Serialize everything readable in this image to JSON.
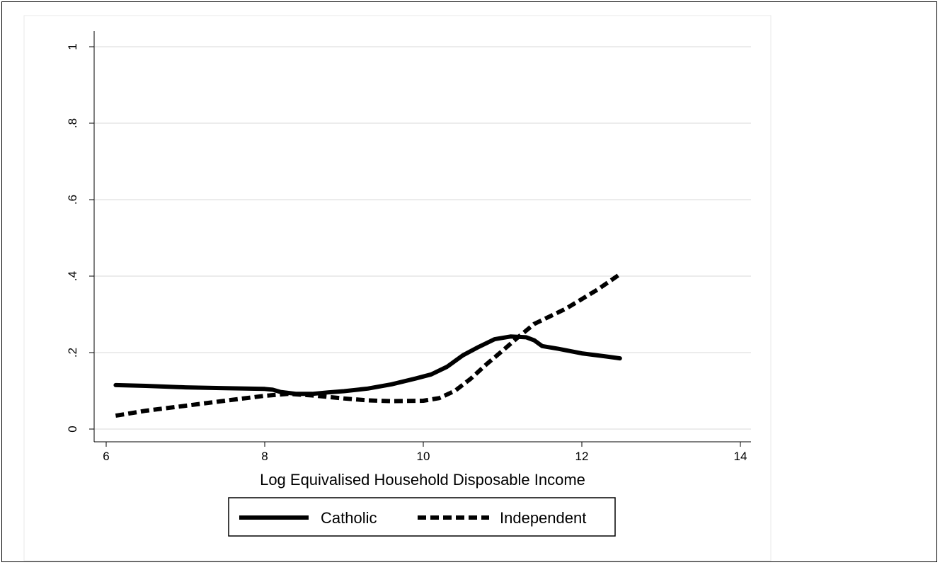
{
  "chart_data": {
    "type": "line",
    "title": "",
    "xlabel": "Log Equivalised Household Disposable Income",
    "ylabel": "",
    "xlim": [
      6,
      14
    ],
    "ylim": [
      0,
      1
    ],
    "x_ticks": [
      6,
      8,
      10,
      12,
      14
    ],
    "x_tick_labels": [
      "6",
      "8",
      "10",
      "12",
      "14"
    ],
    "y_ticks": [
      0,
      0.2,
      0.4,
      0.6,
      0.8,
      1
    ],
    "y_tick_labels": [
      "0",
      ".2",
      ".4",
      ".6",
      ".8",
      "1"
    ],
    "grid": "horizontal",
    "legend_position": "bottom",
    "series": [
      {
        "name": "Catholic",
        "style": "solid",
        "color": "#000000",
        "points": [
          [
            6.12,
            0.115
          ],
          [
            6.5,
            0.113
          ],
          [
            7.0,
            0.109
          ],
          [
            7.5,
            0.107
          ],
          [
            8.0,
            0.105
          ],
          [
            8.1,
            0.103
          ],
          [
            8.2,
            0.097
          ],
          [
            8.4,
            0.092
          ],
          [
            8.6,
            0.092
          ],
          [
            8.8,
            0.096
          ],
          [
            9.0,
            0.099
          ],
          [
            9.3,
            0.106
          ],
          [
            9.6,
            0.117
          ],
          [
            9.9,
            0.132
          ],
          [
            10.1,
            0.143
          ],
          [
            10.3,
            0.163
          ],
          [
            10.5,
            0.193
          ],
          [
            10.7,
            0.215
          ],
          [
            10.9,
            0.235
          ],
          [
            11.1,
            0.242
          ],
          [
            11.3,
            0.24
          ],
          [
            11.4,
            0.232
          ],
          [
            11.5,
            0.217
          ],
          [
            11.7,
            0.21
          ],
          [
            12.0,
            0.198
          ],
          [
            12.3,
            0.19
          ],
          [
            12.48,
            0.185
          ]
        ]
      },
      {
        "name": "Independent",
        "style": "dashed",
        "color": "#000000",
        "points": [
          [
            6.12,
            0.035
          ],
          [
            6.5,
            0.048
          ],
          [
            7.0,
            0.061
          ],
          [
            7.5,
            0.074
          ],
          [
            8.0,
            0.087
          ],
          [
            8.3,
            0.092
          ],
          [
            8.6,
            0.088
          ],
          [
            9.0,
            0.08
          ],
          [
            9.3,
            0.075
          ],
          [
            9.6,
            0.073
          ],
          [
            10.0,
            0.074
          ],
          [
            10.2,
            0.081
          ],
          [
            10.4,
            0.1
          ],
          [
            10.6,
            0.132
          ],
          [
            10.8,
            0.17
          ],
          [
            11.0,
            0.205
          ],
          [
            11.2,
            0.241
          ],
          [
            11.4,
            0.275
          ],
          [
            11.6,
            0.295
          ],
          [
            11.8,
            0.315
          ],
          [
            12.0,
            0.34
          ],
          [
            12.2,
            0.365
          ],
          [
            12.48,
            0.405
          ]
        ]
      }
    ]
  }
}
